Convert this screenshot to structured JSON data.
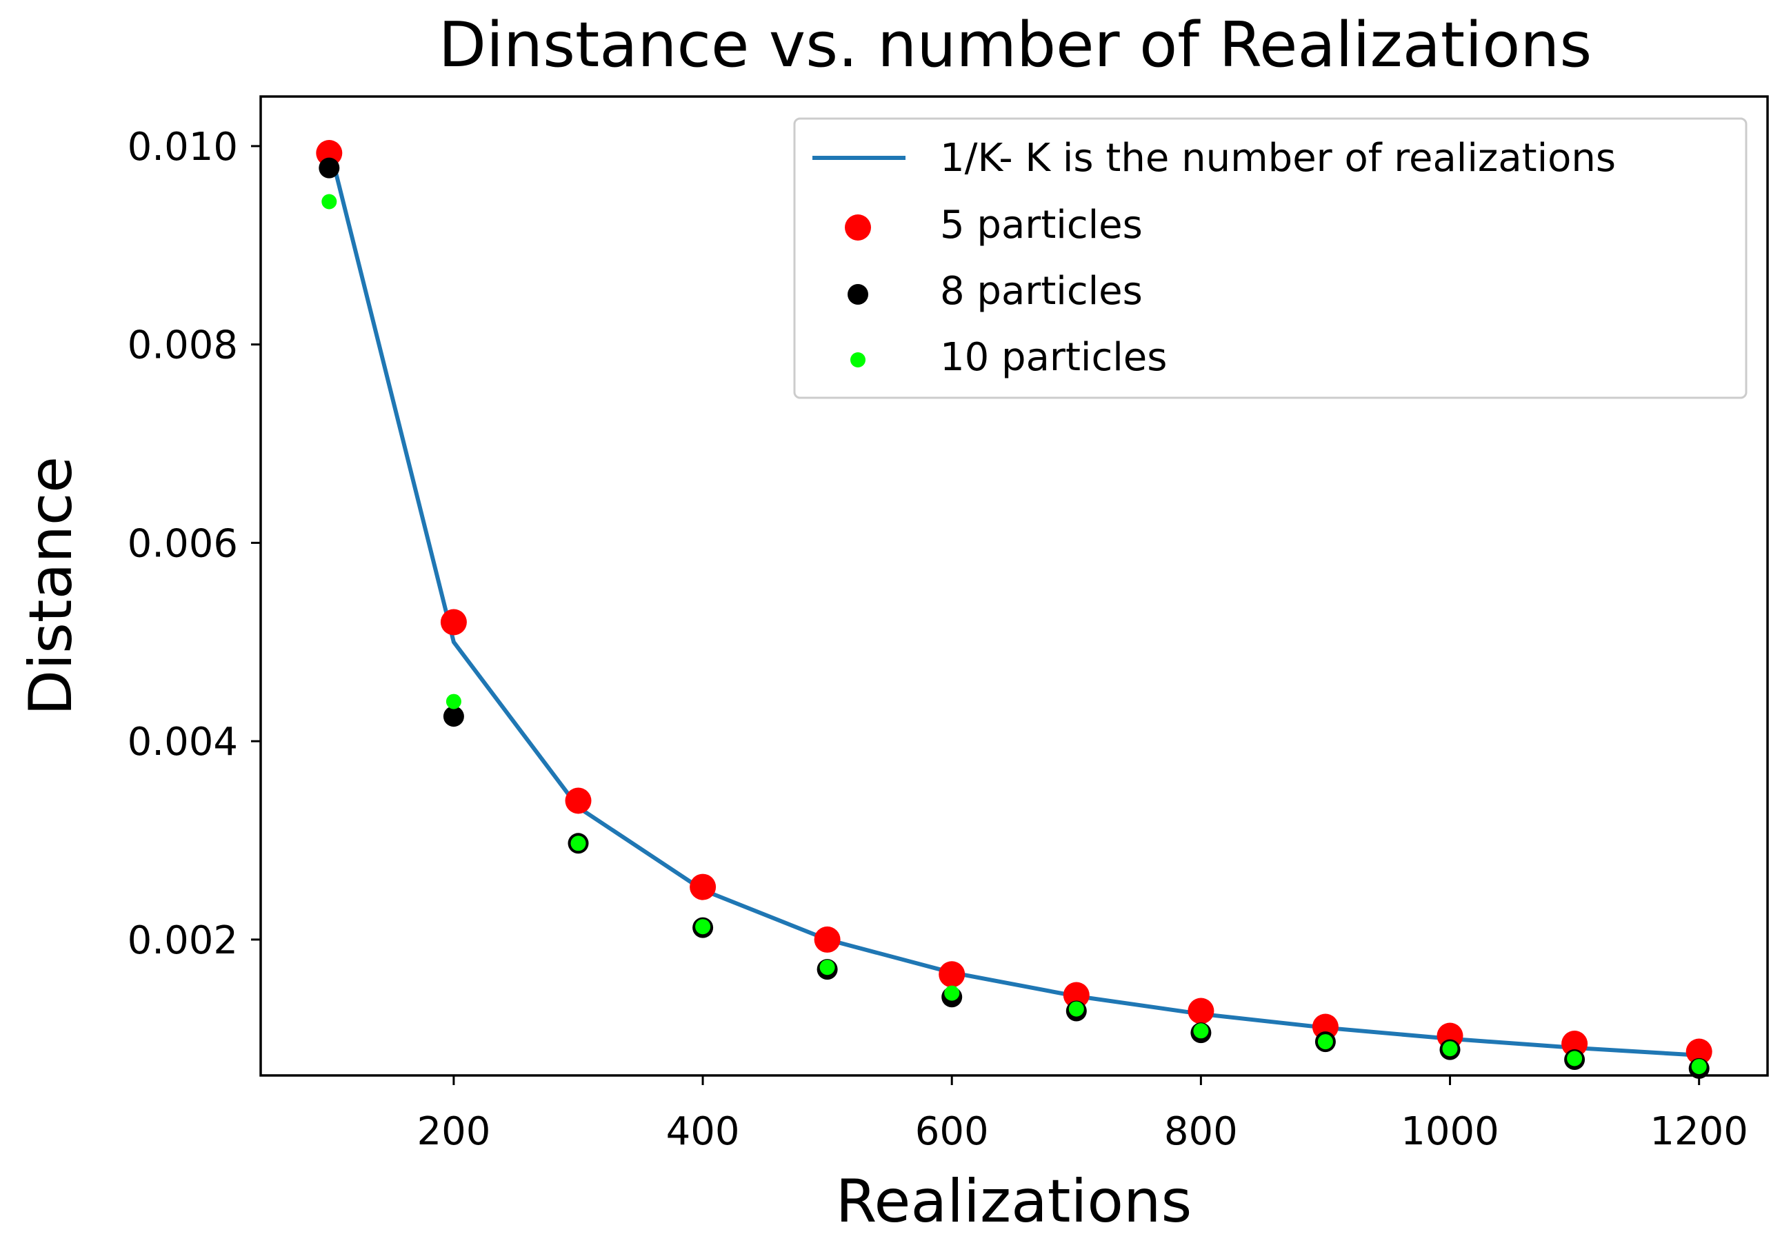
{
  "chart_data": {
    "type": "scatter",
    "title": "Dinstance vs. number of Realizations",
    "xlabel": "Realizations",
    "ylabel": "Distance",
    "xlim": [
      45,
      1255
    ],
    "ylim": [
      0.00063,
      0.0105
    ],
    "xticks": [
      200,
      400,
      600,
      800,
      1000,
      1200
    ],
    "xtick_labels": [
      "200",
      "400",
      "600",
      "800",
      "1000",
      "1200"
    ],
    "yticks": [
      0.002,
      0.004,
      0.006,
      0.008,
      0.01
    ],
    "ytick_labels": [
      "0.002",
      "0.004",
      "0.006",
      "0.008",
      "0.010"
    ],
    "grid": false,
    "legend_position": "top-right",
    "x": [
      100,
      200,
      300,
      400,
      500,
      600,
      700,
      800,
      900,
      1000,
      1100,
      1200
    ],
    "series": [
      {
        "name": "1/K- K is the number of realizations",
        "kind": "line",
        "color": "#1f77b4",
        "values": [
          0.01,
          0.005,
          0.003333,
          0.0025,
          0.002,
          0.001667,
          0.001429,
          0.00125,
          0.001111,
          0.001,
          0.000909,
          0.000833
        ]
      },
      {
        "name": "5 particles",
        "kind": "scatter",
        "color": "#ff0000",
        "marker": "large",
        "values": [
          0.00993,
          0.0052,
          0.0034,
          0.00253,
          0.002,
          0.00165,
          0.00144,
          0.00128,
          0.00112,
          0.00103,
          0.00095,
          0.00087
        ]
      },
      {
        "name": "8 particles",
        "kind": "scatter",
        "color": "#000000",
        "marker": "medium",
        "values": [
          0.00978,
          0.00425,
          0.00297,
          0.00212,
          0.0017,
          0.00142,
          0.00128,
          0.00106,
          0.00097,
          0.00089,
          0.00079,
          0.0007
        ]
      },
      {
        "name": "10 particles",
        "kind": "scatter",
        "color": "#00ff00",
        "marker": "small",
        "values": [
          0.00944,
          0.0044,
          0.00297,
          0.00213,
          0.00172,
          0.00146,
          0.0013,
          0.00108,
          0.00097,
          0.0009,
          0.0008,
          0.00072
        ]
      }
    ]
  }
}
